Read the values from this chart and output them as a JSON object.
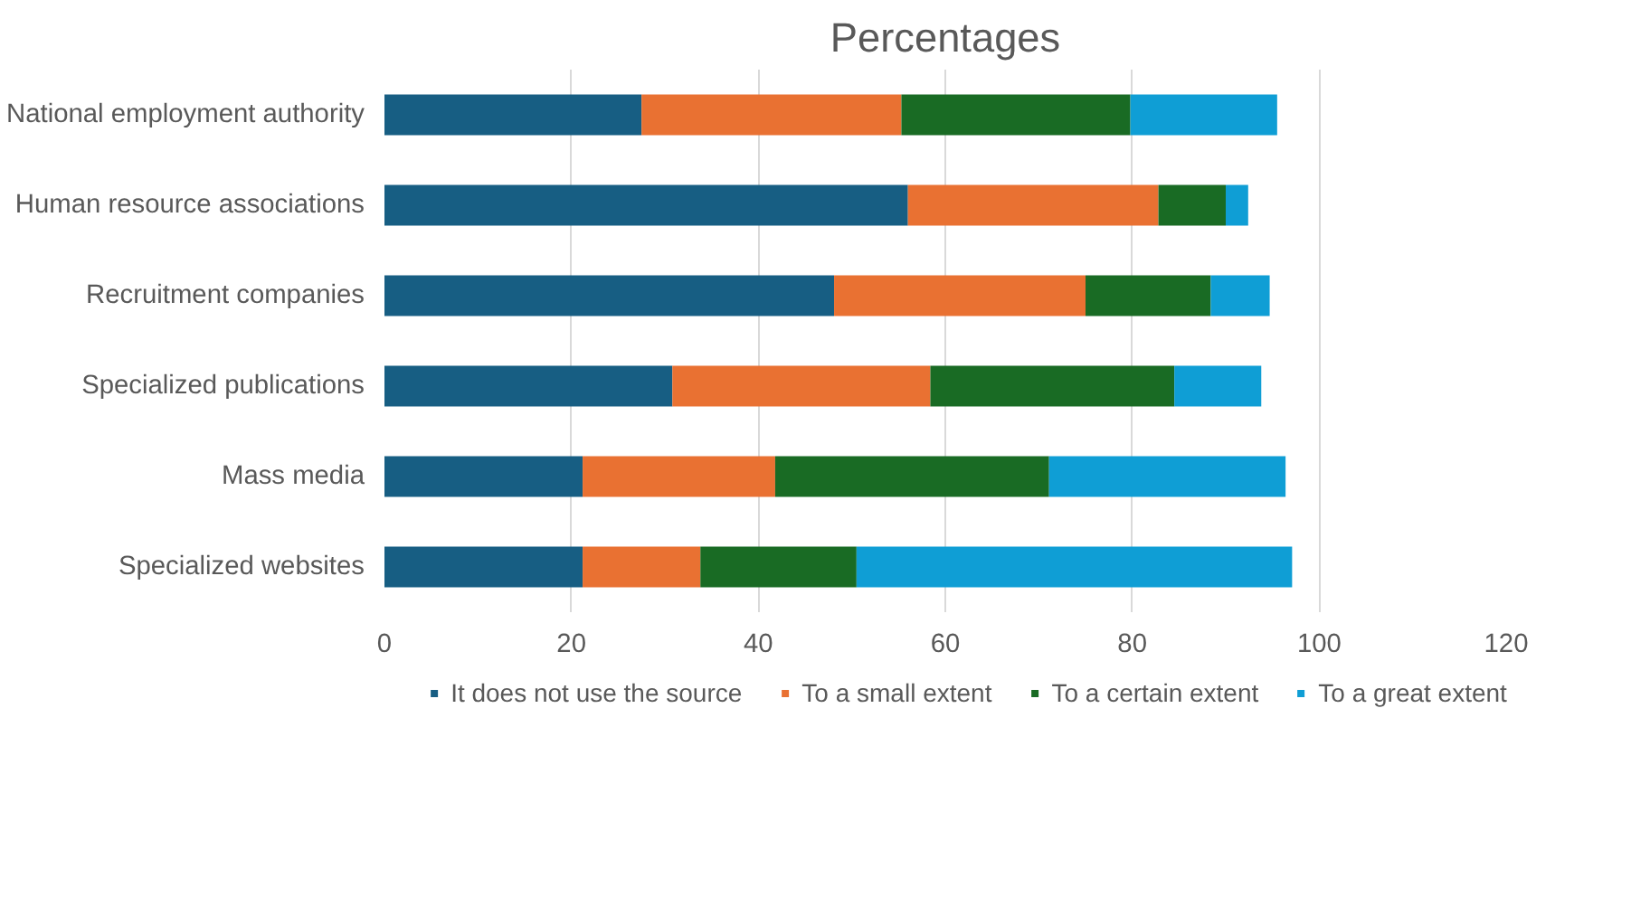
{
  "chart_data": {
    "type": "bar",
    "title": "Percentages",
    "orientation": "horizontal",
    "stacked": true,
    "categories": [
      "National employment authority",
      "Human resource associations",
      "Recruitment companies",
      "Specialized publications",
      "Mass media",
      "Specialized websites"
    ],
    "series": [
      {
        "name": "It does not use the source",
        "color": "#175e83",
        "values": [
          27.5,
          56.0,
          48.1,
          30.8,
          21.2,
          21.2
        ]
      },
      {
        "name": "To a small extent",
        "color": "#e97132",
        "values": [
          27.8,
          26.8,
          26.9,
          27.6,
          20.6,
          12.6
        ]
      },
      {
        "name": "To a certain extent",
        "color": "#196b24",
        "values": [
          24.5,
          7.2,
          13.4,
          26.1,
          29.3,
          16.7
        ]
      },
      {
        "name": "To a great extent",
        "color": "#0f9ed5",
        "values": [
          15.7,
          2.4,
          6.3,
          9.3,
          25.3,
          46.6
        ]
      }
    ],
    "xlim": [
      0,
      120
    ],
    "xticks": [
      0,
      20,
      40,
      60,
      80,
      100,
      120
    ],
    "grid": "x",
    "legend": "bottom"
  }
}
